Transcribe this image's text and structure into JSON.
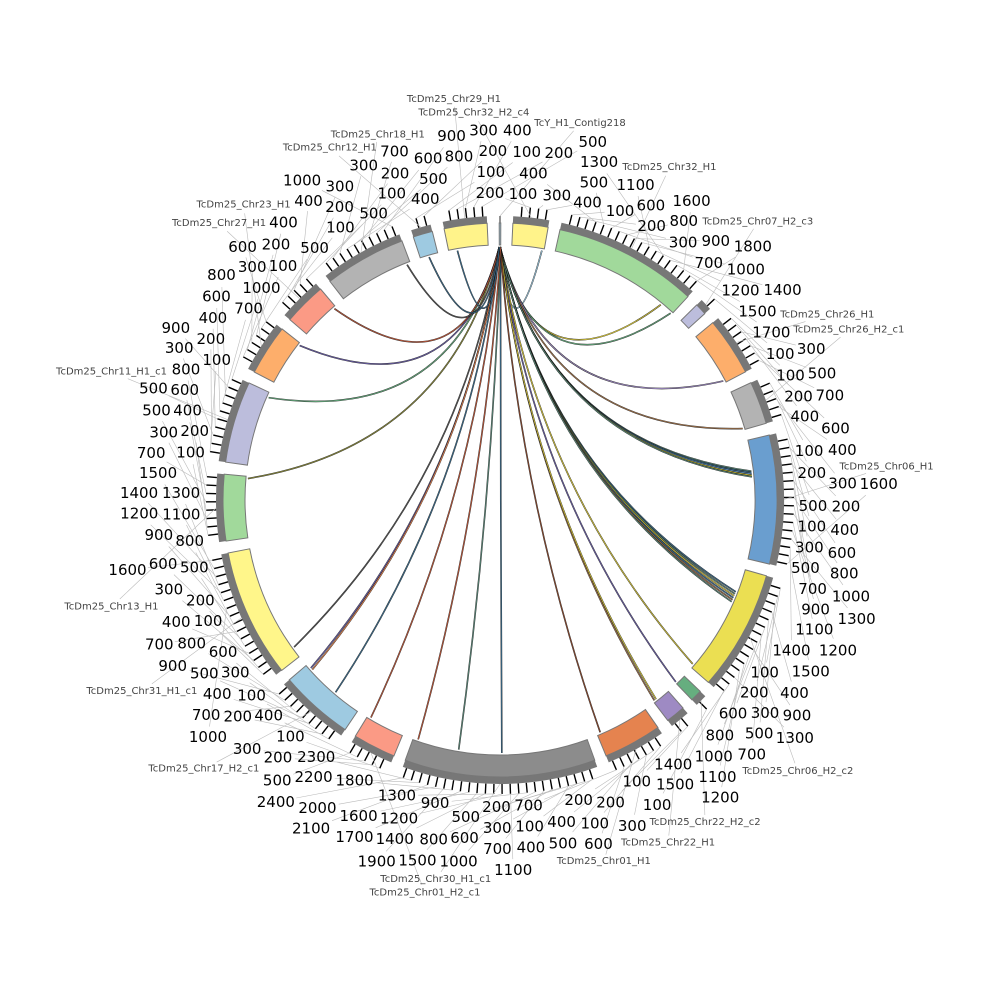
{
  "chart_data": {
    "type": "circos",
    "tick_interval": 100,
    "chromosomes": [
      {
        "name": "TcY_H1_Contig218",
        "length": 20,
        "color": "#9ecae1"
      },
      {
        "name": "TcDm25_Chr32_H2_c4",
        "length": 450,
        "color": "#fff38a"
      },
      {
        "name": "TcDm25_Chr32_H1",
        "length": 1850,
        "color": "#a1d99b"
      },
      {
        "name": "TcDm25_Chr07_H2_c3",
        "length": 150,
        "color": "#bcbddc"
      },
      {
        "name": "TcDm25_Chr26_H1",
        "length": 750,
        "color": "#fdae6b"
      },
      {
        "name": "TcDm25_Chr26_H2_c1",
        "length": 550,
        "color": "#b3b3b3"
      },
      {
        "name": "TcDm25_Chr06_H1",
        "length": 1650,
        "color": "#6a9ecf"
      },
      {
        "name": "TcDm25_Chr06_H2_c2",
        "length": 1550,
        "color": "#ebdf52"
      },
      {
        "name": "TcDm25_Chr22_H2_c2",
        "length": 150,
        "color": "#66ae7f"
      },
      {
        "name": "TcDm25_Chr22_H1",
        "length": 250,
        "color": "#9e8ac3"
      },
      {
        "name": "TcDm25_Chr01_H1",
        "length": 750,
        "color": "#e5834f"
      },
      {
        "name": "TcDm25_Chr30_H1_c1",
        "length": 2450,
        "color": "#8c8c8c"
      },
      {
        "name": "TcDm25_Chr01_H2_c1",
        "length": 550,
        "color": "#fb9a85"
      },
      {
        "name": "TcDm25_Chr17_H2_c1",
        "length": 950,
        "color": "#9ecae1"
      },
      {
        "name": "TcDm25_Chr31_H1_c1",
        "length": 1650,
        "color": "#fff68a"
      },
      {
        "name": "TcDm25_Chr13_H1",
        "length": 850,
        "color": "#a1d99b"
      },
      {
        "name": "TcDm25_Chr11_H1_c1",
        "length": 1050,
        "color": "#bcbddc"
      },
      {
        "name": "TcDm25_Chr23_H1",
        "length": 650,
        "color": "#fdae6b"
      },
      {
        "name": "TcDm25_Chr27_H1",
        "length": 550,
        "color": "#fb9a85"
      },
      {
        "name": "TcDm25_Chr18_H1",
        "length": 1050,
        "color": "#b3b3b3"
      },
      {
        "name": "TcDm25_Chr12_H1",
        "length": 250,
        "color": "#9ecae1"
      },
      {
        "name": "TcDm25_Chr29_H1",
        "length": 550,
        "color": "#fff38a"
      }
    ],
    "links": [
      {
        "from": [
          "TcY_H1_Contig218",
          5
        ],
        "to": [
          "TcDm25_Chr32_H2_c4",
          420
        ],
        "color": "#9ecae1"
      },
      {
        "from": [
          "TcY_H1_Contig218",
          6
        ],
        "to": [
          "TcDm25_Chr32_H1",
          1650
        ],
        "color": "#d8c83a"
      },
      {
        "from": [
          "TcY_H1_Contig218",
          7
        ],
        "to": [
          "TcDm25_Chr32_H1",
          1830
        ],
        "color": "#66ae7f"
      },
      {
        "from": [
          "TcY_H1_Contig218",
          8
        ],
        "to": [
          "TcDm25_Chr26_H1",
          720
        ],
        "color": "#9e8ac3"
      },
      {
        "from": [
          "TcY_H1_Contig218",
          9
        ],
        "to": [
          "TcDm25_Chr26_H2_c1",
          530
        ],
        "color": "#a0724a"
      },
      {
        "from": [
          "TcY_H1_Contig218",
          10
        ],
        "to": [
          "TcDm25_Chr06_H1",
          430
        ],
        "color": "#5b8a7a"
      },
      {
        "from": [
          "TcY_H1_Contig218",
          10
        ],
        "to": [
          "TcDm25_Chr06_H1",
          450
        ],
        "color": "#3b6e8f"
      },
      {
        "from": [
          "TcY_H1_Contig218",
          11
        ],
        "to": [
          "TcDm25_Chr06_H1",
          470
        ],
        "color": "#6a9ecf"
      },
      {
        "from": [
          "TcY_H1_Contig218",
          11
        ],
        "to": [
          "TcDm25_Chr06_H1",
          490
        ],
        "color": "#d8c83a"
      },
      {
        "from": [
          "TcY_H1_Contig218",
          12
        ],
        "to": [
          "TcDm25_Chr06_H1",
          510
        ],
        "color": "#5b8a7a"
      },
      {
        "from": [
          "TcY_H1_Contig218",
          12
        ],
        "to": [
          "TcDm25_Chr06_H2_c2",
          330
        ],
        "color": "#3b6e8f"
      },
      {
        "from": [
          "TcY_H1_Contig218",
          13
        ],
        "to": [
          "TcDm25_Chr06_H2_c2",
          360
        ],
        "color": "#5b8a7a"
      },
      {
        "from": [
          "TcY_H1_Contig218",
          13
        ],
        "to": [
          "TcDm25_Chr06_H2_c2",
          390
        ],
        "color": "#d8c83a"
      },
      {
        "from": [
          "TcY_H1_Contig218",
          14
        ],
        "to": [
          "TcDm25_Chr06_H2_c2",
          420
        ],
        "color": "#3b6e8f"
      },
      {
        "from": [
          "TcY_H1_Contig218",
          14
        ],
        "to": [
          "TcDm25_Chr06_H2_c2",
          450
        ],
        "color": "#a0724a"
      },
      {
        "from": [
          "TcY_H1_Contig218",
          15
        ],
        "to": [
          "TcDm25_Chr06_H2_c2",
          480
        ],
        "color": "#5b8a7a"
      },
      {
        "from": [
          "TcY_H1_Contig218",
          15
        ],
        "to": [
          "TcDm25_Chr06_H2_c2",
          1500
        ],
        "color": "#d8c83a"
      },
      {
        "from": [
          "TcY_H1_Contig218",
          16
        ],
        "to": [
          "TcDm25_Chr22_H2_c2",
          140
        ],
        "color": "#6b5fa8"
      },
      {
        "from": [
          "TcY_H1_Contig218",
          16
        ],
        "to": [
          "TcDm25_Chr22_H1",
          230
        ],
        "color": "#a0724a"
      },
      {
        "from": [
          "TcY_H1_Contig218",
          16
        ],
        "to": [
          "TcDm25_Chr22_H1",
          200
        ],
        "color": "#d8c83a"
      },
      {
        "from": [
          "TcY_H1_Contig218",
          17
        ],
        "to": [
          "TcDm25_Chr01_H1",
          700
        ],
        "color": "#8c4a2f"
      },
      {
        "from": [
          "TcY_H1_Contig218",
          17
        ],
        "to": [
          "TcDm25_Chr30_H1_c1",
          1200
        ],
        "color": "#3b6e8f"
      },
      {
        "from": [
          "TcY_H1_Contig218",
          18
        ],
        "to": [
          "TcDm25_Chr30_H1_c1",
          1800
        ],
        "color": "#5b8a7a"
      },
      {
        "from": [
          "TcY_H1_Contig218",
          18
        ],
        "to": [
          "TcDm25_Chr30_H1_c1",
          2380
        ],
        "color": "#c0583a"
      },
      {
        "from": [
          "TcY_H1_Contig218",
          3
        ],
        "to": [
          "TcDm25_Chr01_H2_c1",
          500
        ],
        "color": "#c0583a"
      },
      {
        "from": [
          "TcY_H1_Contig218",
          3
        ],
        "to": [
          "TcDm25_Chr17_H2_c1",
          880
        ],
        "color": "#6b5fa8"
      },
      {
        "from": [
          "TcY_H1_Contig218",
          2
        ],
        "to": [
          "TcDm25_Chr17_H2_c1",
          850
        ],
        "color": "#e5834f"
      },
      {
        "from": [
          "TcY_H1_Contig218",
          2
        ],
        "to": [
          "TcDm25_Chr17_H2_c1",
          400
        ],
        "color": "#3b6e8f"
      },
      {
        "from": [
          "TcY_H1_Contig218",
          2
        ],
        "to": [
          "TcDm25_Chr31_H1_c1",
          150
        ],
        "color": "#555555"
      },
      {
        "from": [
          "TcY_H1_Contig218",
          1
        ],
        "to": [
          "TcDm25_Chr13_H1",
          820
        ],
        "color": "#8a8a3a"
      },
      {
        "from": [
          "TcY_H1_Contig218",
          1
        ],
        "to": [
          "TcDm25_Chr11_H1_c1",
          980
        ],
        "color": "#66ae7f"
      },
      {
        "from": [
          "TcY_H1_Contig218",
          1
        ],
        "to": [
          "TcDm25_Chr23_H1",
          620
        ],
        "color": "#6b5fa8"
      },
      {
        "from": [
          "TcY_H1_Contig218",
          0
        ],
        "to": [
          "TcDm25_Chr27_H1",
          520
        ],
        "color": "#c0583a"
      },
      {
        "from": [
          "TcY_H1_Contig218",
          0
        ],
        "to": [
          "TcDm25_Chr18_H1",
          1000
        ],
        "color": "#555555"
      },
      {
        "from": [
          "TcY_H1_Contig218",
          0
        ],
        "to": [
          "TcDm25_Chr12_H1",
          120
        ],
        "color": "#3b6e8f"
      },
      {
        "from": [
          "TcY_H1_Contig218",
          0
        ],
        "to": [
          "TcDm25_Chr29_H1",
          120
        ],
        "color": "#3b6e8f"
      }
    ]
  }
}
